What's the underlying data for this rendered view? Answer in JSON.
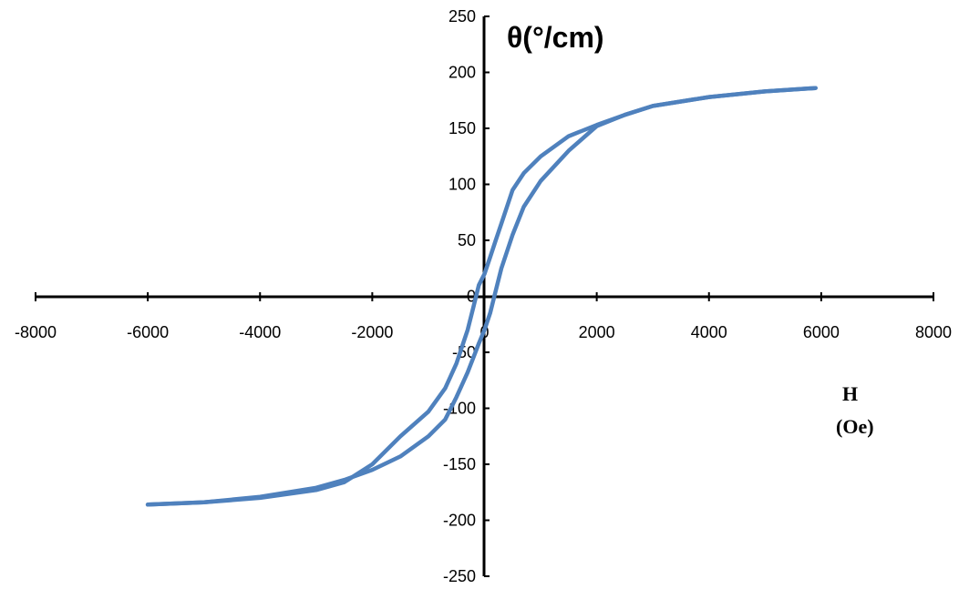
{
  "chart_data": {
    "type": "line",
    "title": "",
    "ylabel": "θ(°/cm)",
    "xlabel_lines": [
      "H",
      "(Oe)"
    ],
    "xlim": [
      -8000,
      8000
    ],
    "ylim": [
      -250,
      250
    ],
    "x_ticks": [
      -8000,
      -6000,
      -4000,
      -2000,
      0,
      2000,
      4000,
      6000,
      8000
    ],
    "y_ticks": [
      -250,
      -200,
      -150,
      -100,
      -50,
      0,
      50,
      100,
      150,
      200,
      250
    ],
    "x_tick_labels": [
      "-8000",
      "-6000",
      "-4000",
      "-2000",
      "0",
      "2000",
      "4000",
      "6000",
      "8000"
    ],
    "y_tick_labels": [
      "-250",
      "-200",
      "-150",
      "-100",
      "-50",
      "0",
      "50",
      "100",
      "150",
      "200",
      "250"
    ],
    "grid": false,
    "legend": "none",
    "line_color": "#4f81bd",
    "series": [
      {
        "x": [
          -6000,
          -5000,
          -4000,
          -3000,
          -2500,
          -2000,
          -1500,
          -1000,
          -700,
          -500,
          -300,
          -200,
          -100,
          0,
          100,
          200,
          300,
          500,
          700,
          1000,
          1500,
          2000,
          2500,
          3000,
          4000,
          5000,
          5900
        ],
        "y": [
          -186,
          -184,
          -180,
          -173,
          -166,
          -150,
          -125,
          -103,
          -82,
          -60,
          -30,
          -10,
          10,
          20,
          35,
          50,
          65,
          95,
          110,
          125,
          143,
          153,
          162,
          170,
          178,
          183,
          186
        ]
      },
      {
        "x": [
          5900,
          5000,
          4000,
          3000,
          2500,
          2000,
          1500,
          1000,
          700,
          500,
          300,
          200,
          100,
          0,
          -100,
          -200,
          -300,
          -500,
          -700,
          -1000,
          -1500,
          -2000,
          -2500,
          -3000,
          -4000,
          -5000,
          -6000
        ],
        "y": [
          186,
          183,
          178,
          170,
          162,
          152,
          130,
          103,
          80,
          55,
          25,
          5,
          -15,
          -30,
          -42,
          -55,
          -68,
          -90,
          -110,
          -125,
          -143,
          -155,
          -164,
          -171,
          -179,
          -184,
          -186
        ]
      }
    ]
  }
}
